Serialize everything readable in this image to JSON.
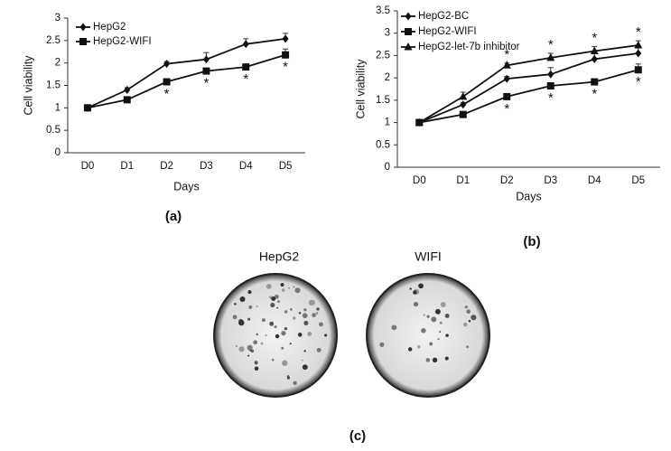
{
  "chart_data": [
    {
      "type": "line",
      "panel_label": "(a)",
      "xlabel": "Days",
      "ylabel": "Cell viability",
      "categories": [
        "D0",
        "D1",
        "D2",
        "D3",
        "D4",
        "D5"
      ],
      "ylim": [
        0,
        3
      ],
      "yticks": [
        0,
        0.5,
        1,
        1.5,
        2,
        2.5,
        3
      ],
      "grid": false,
      "legend": "top-left",
      "series": [
        {
          "name": "HepG2",
          "color": "#111111",
          "marker": "diamond",
          "values": [
            1,
            1.4,
            1.98,
            2.08,
            2.42,
            2.54
          ],
          "errors": [
            0,
            0.05,
            0.05,
            0.15,
            0.12,
            0.12
          ]
        },
        {
          "name": "HepG2-WIFI",
          "color": "#111111",
          "marker": "square",
          "values": [
            1,
            1.18,
            1.58,
            1.82,
            1.91,
            2.18
          ],
          "errors": [
            0,
            0.03,
            0.03,
            0.06,
            0.03,
            0.13
          ]
        }
      ],
      "annotations": [
        {
          "text": "*",
          "x": "D2",
          "series": "HepG2-WIFI",
          "position": "below"
        },
        {
          "text": "*",
          "x": "D3",
          "series": "HepG2-WIFI",
          "position": "below"
        },
        {
          "text": "*",
          "x": "D4",
          "series": "HepG2-WIFI",
          "position": "below"
        },
        {
          "text": "*",
          "x": "D5",
          "series": "HepG2-WIFI",
          "position": "below"
        }
      ]
    },
    {
      "type": "line",
      "panel_label": "(b)",
      "xlabel": "Days",
      "ylabel": "Cell viability",
      "categories": [
        "D0",
        "D1",
        "D2",
        "D3",
        "D4",
        "D5"
      ],
      "ylim": [
        0,
        3.5
      ],
      "yticks": [
        0,
        0.5,
        1,
        1.5,
        2,
        2.5,
        3,
        3.5
      ],
      "grid": false,
      "legend": "top-left",
      "series": [
        {
          "name": "HepG2-BC",
          "color": "#111111",
          "marker": "diamond",
          "values": [
            1,
            1.4,
            1.98,
            2.08,
            2.42,
            2.55
          ],
          "errors": [
            0,
            0.05,
            0.05,
            0.15,
            0.12,
            0.12
          ]
        },
        {
          "name": "HepG2-WIFI",
          "color": "#111111",
          "marker": "square",
          "values": [
            1,
            1.18,
            1.58,
            1.82,
            1.91,
            2.18
          ],
          "errors": [
            0,
            0.03,
            0.03,
            0.06,
            0.03,
            0.13
          ]
        },
        {
          "name": "HepG2-let-7b inhibitor",
          "color": "#111111",
          "marker": "triangle",
          "values": [
            1,
            1.58,
            2.28,
            2.45,
            2.6,
            2.73
          ],
          "errors": [
            0,
            0.1,
            0.05,
            0.1,
            0.1,
            0.1
          ]
        }
      ],
      "annotations": [
        {
          "text": "*",
          "x": "D2",
          "series": "HepG2-let-7b inhibitor",
          "position": "above"
        },
        {
          "text": "*",
          "x": "D3",
          "series": "HepG2-let-7b inhibitor",
          "position": "above"
        },
        {
          "text": "*",
          "x": "D4",
          "series": "HepG2-let-7b inhibitor",
          "position": "above"
        },
        {
          "text": "*",
          "x": "D5",
          "series": "HepG2-let-7b inhibitor",
          "position": "above"
        },
        {
          "text": "*",
          "x": "D2",
          "series": "HepG2-WIFI",
          "position": "below"
        },
        {
          "text": "*",
          "x": "D3",
          "series": "HepG2-WIFI",
          "position": "below"
        },
        {
          "text": "*",
          "x": "D4",
          "series": "HepG2-WIFI",
          "position": "below"
        },
        {
          "text": "*",
          "x": "D5",
          "series": "HepG2-WIFI",
          "position": "below"
        }
      ]
    }
  ],
  "figure_c": {
    "panel_label": "(c)",
    "images": [
      "HepG2",
      "WIFI"
    ]
  }
}
